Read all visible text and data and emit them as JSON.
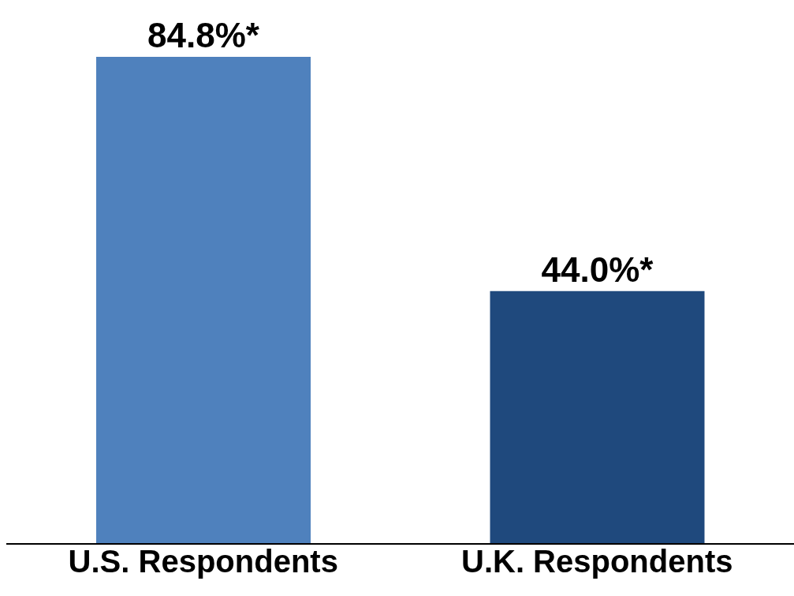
{
  "chart_data": {
    "type": "bar",
    "categories": [
      "U.S. Respondents",
      "U.K. Respondents"
    ],
    "values": [
      84.8,
      44.0
    ],
    "colors": [
      "#4f81bd",
      "#1f497d"
    ],
    "value_labels": [
      "84.8%*",
      "44.0%*"
    ]
  }
}
